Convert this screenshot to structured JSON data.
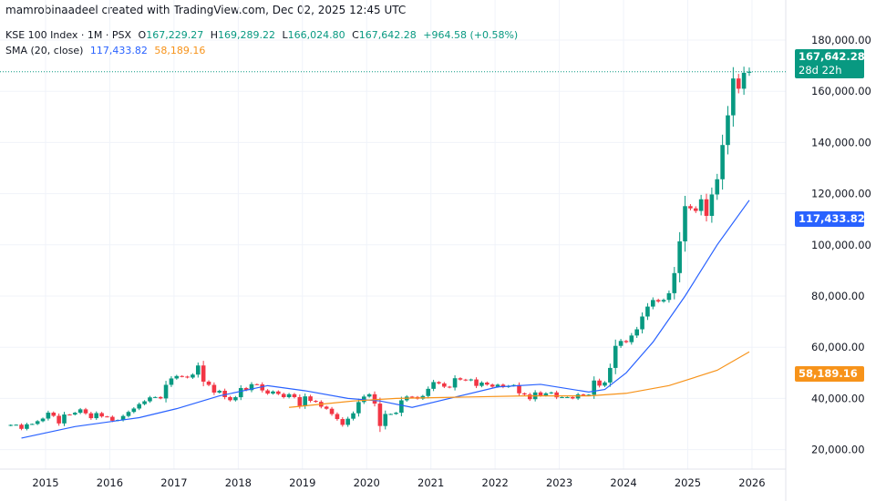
{
  "credit": "mamrobinaadeel created with TradingView.com, Dec 02, 2025 12:45 UTC",
  "legend": {
    "symbol": "KSE 100 Index · 1M · PSX",
    "o_label": "O",
    "o": "167,229.27",
    "h_label": "H",
    "h": "169,289.22",
    "l_label": "L",
    "l": "166,024.80",
    "c_label": "C",
    "c": "167,642.28",
    "change": "+964.58 (+0.58%)",
    "sma_label": "SMA (20, close)",
    "sma1": "117,433.82",
    "sma2": "58,189.16"
  },
  "tags": {
    "price": "167,642.28",
    "countdown": "28d 22h",
    "sma1": "117,433.82",
    "sma2": "58,189.16"
  },
  "colors": {
    "up": "#089981",
    "down": "#f23645",
    "sma1": "#2962ff",
    "sma2": "#f7931a"
  },
  "chart_data": {
    "type": "candlestick",
    "interval": "1M",
    "start": "2014-06",
    "ylim": [
      10000,
      190000
    ],
    "yticks": [
      "20,000.00",
      "40,000.00",
      "60,000.00",
      "80,000.00",
      "100,000.00",
      "120,000.00",
      "140,000.00",
      "160,000.00",
      "180,000.00"
    ],
    "ytick_values": [
      20000,
      40000,
      60000,
      80000,
      100000,
      120000,
      140000,
      160000,
      180000
    ],
    "xticks": [
      "2015",
      "2016",
      "2017",
      "2018",
      "2019",
      "2020",
      "2021",
      "2022",
      "2023",
      "2024",
      "2025",
      "2026"
    ],
    "grid": true,
    "last_ohlc": [
      167229.27,
      169289.22,
      166024.8,
      167642.28
    ],
    "closes": [
      29653,
      29727,
      28117,
      29900,
      30027,
      31108,
      32131,
      34451,
      33212,
      30234,
      33720,
      33700,
      34399,
      35741,
      34176,
      32288,
      34263,
      32963,
      32816,
      31299,
      31570,
      33139,
      34719,
      36061,
      37784,
      38875,
      40406,
      40542,
      40001,
      45316,
      47807,
      48757,
      48534,
      48156,
      49300,
      52876,
      46565,
      45300,
      42300,
      43000,
      40500,
      39300,
      40471,
      44050,
      43240,
      45560,
      45488,
      43134,
      41911,
      42712,
      41742,
      40500,
      41649,
      40500,
      37067,
      40800,
      39055,
      38649,
      36784,
      35975,
      33902,
      31940,
      29672,
      32079,
      34204,
      38577,
      40735,
      41631,
      37984,
      29232,
      33931,
      33931,
      34422,
      39258,
      40708,
      40571,
      39888,
      40953,
      43755,
      46386,
      45865,
      44588,
      44262,
      47896,
      47356,
      47055,
      47420,
      44900,
      46184,
      45400,
      44596,
      45375,
      44461,
      44929,
      45249,
      42000,
      41541,
      39700,
      42351,
      41129,
      42000,
      42349,
      40420,
      40500,
      40510,
      40000,
      41581,
      41330,
      41453,
      47000,
      45000,
      46233,
      51920,
      60531,
      62451,
      61979,
      64578,
      67005,
      72000,
      75878,
      78445,
      77886,
      78488,
      81114,
      88967,
      101357,
      115127,
      114256,
      113252,
      117807,
      111326,
      119692,
      125627,
      139000,
      150600,
      165000,
      161000,
      167229.27,
      167642.28
    ],
    "series": [
      {
        "name": "SMA (20, close)",
        "points": [
          [
            "2014-08",
            24500
          ],
          [
            "2015-06",
            29000
          ],
          [
            "2016-06",
            32500
          ],
          [
            "2017-01",
            36000
          ],
          [
            "2017-09",
            41000
          ],
          [
            "2018-06",
            45000
          ],
          [
            "2019-01",
            43000
          ],
          [
            "2019-09",
            40000
          ],
          [
            "2020-03",
            39000
          ],
          [
            "2020-09",
            36500
          ],
          [
            "2021-06",
            41000
          ],
          [
            "2022-01",
            44500
          ],
          [
            "2022-09",
            45500
          ],
          [
            "2023-06",
            42500
          ],
          [
            "2023-09",
            43500
          ],
          [
            "2024-01",
            50000
          ],
          [
            "2024-06",
            62000
          ],
          [
            "2024-12",
            80000
          ],
          [
            "2025-06",
            100000
          ],
          [
            "2025-12",
            117433.82
          ]
        ]
      },
      {
        "name": "SMA",
        "points": [
          [
            "2018-10",
            36500
          ],
          [
            "2019-10",
            39000
          ],
          [
            "2020-06",
            40000
          ],
          [
            "2021-06",
            40500
          ],
          [
            "2022-06",
            41000
          ],
          [
            "2023-06",
            41000
          ],
          [
            "2024-01",
            42000
          ],
          [
            "2024-09",
            45000
          ],
          [
            "2025-06",
            51000
          ],
          [
            "2025-12",
            58189.16
          ]
        ]
      }
    ]
  }
}
